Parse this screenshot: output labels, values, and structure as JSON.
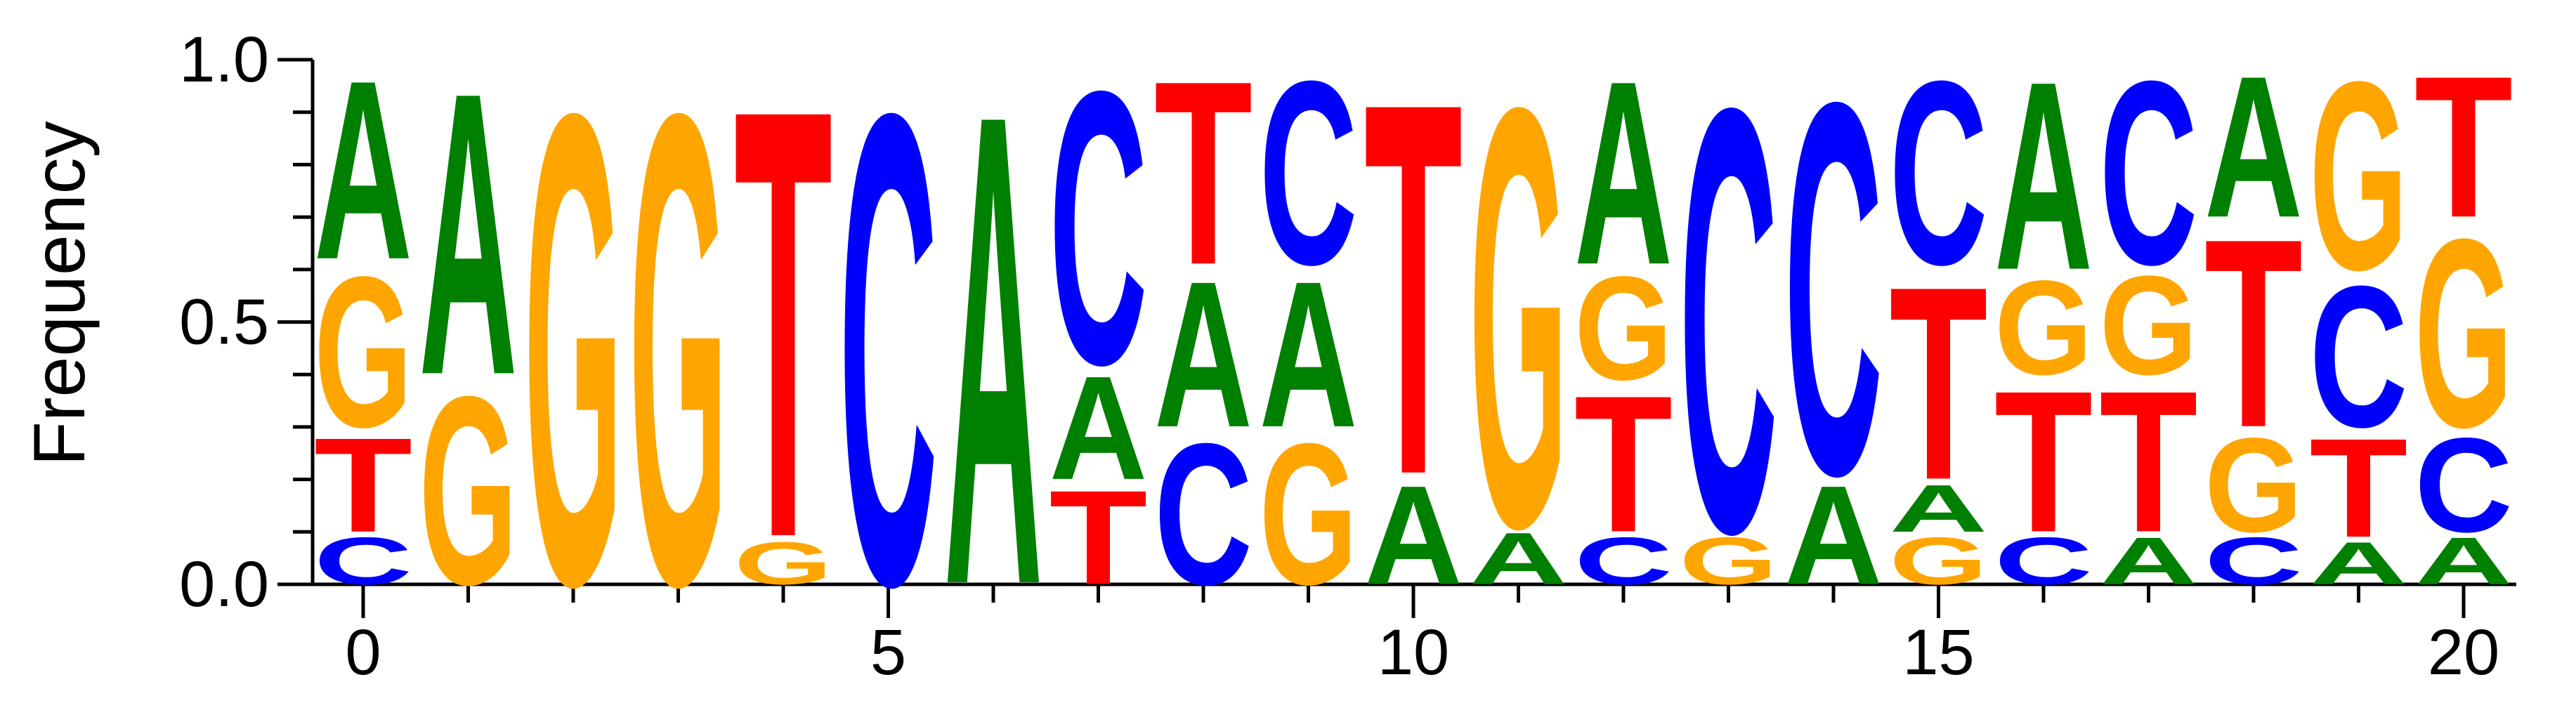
{
  "chart_data": {
    "type": "sequence-logo",
    "title": "",
    "xlabel": "",
    "ylabel": "Frequency",
    "ylim": [
      0,
      1
    ],
    "xlim": [
      -0.5,
      20.5
    ],
    "x_ticks": [
      0,
      5,
      10,
      15,
      20
    ],
    "x_tick_labels": [
      "0",
      "5",
      "10",
      "15",
      "20"
    ],
    "y_ticks": [
      0,
      0.5,
      1
    ],
    "y_tick_labels": [
      "0.0",
      "0.5",
      "1.0"
    ],
    "grid": false,
    "legend": "none",
    "colors": {
      "A": "#008000",
      "C": "#0000ff",
      "G": "#ffa500",
      "T": "#ff0000"
    },
    "positions": [
      {
        "x": 0,
        "stack": [
          [
            "C",
            0.1
          ],
          [
            "T",
            0.2
          ],
          [
            "G",
            0.32
          ],
          [
            "A",
            0.38
          ]
        ]
      },
      {
        "x": 1,
        "stack": [
          [
            "G",
            0.4
          ],
          [
            "A",
            0.6
          ]
        ]
      },
      {
        "x": 2,
        "stack": [
          [
            "G",
            1.0
          ]
        ]
      },
      {
        "x": 3,
        "stack": [
          [
            "G",
            1.0
          ]
        ]
      },
      {
        "x": 4,
        "stack": [
          [
            "G",
            0.09
          ],
          [
            "T",
            0.91
          ]
        ]
      },
      {
        "x": 5,
        "stack": [
          [
            "C",
            1.0
          ]
        ]
      },
      {
        "x": 6,
        "stack": [
          [
            "A",
            1.0
          ]
        ]
      },
      {
        "x": 7,
        "stack": [
          [
            "T",
            0.2
          ],
          [
            "A",
            0.22
          ],
          [
            "C",
            0.58
          ]
        ]
      },
      {
        "x": 8,
        "stack": [
          [
            "C",
            0.3
          ],
          [
            "A",
            0.31
          ],
          [
            "T",
            0.39
          ]
        ]
      },
      {
        "x": 9,
        "stack": [
          [
            "G",
            0.3
          ],
          [
            "A",
            0.31
          ],
          [
            "C",
            0.39
          ]
        ]
      },
      {
        "x": 10,
        "stack": [
          [
            "A",
            0.21
          ],
          [
            "T",
            0.79
          ]
        ]
      },
      {
        "x": 11,
        "stack": [
          [
            "A",
            0.11
          ],
          [
            "G",
            0.89
          ]
        ]
      },
      {
        "x": 12,
        "stack": [
          [
            "C",
            0.1
          ],
          [
            "T",
            0.29
          ],
          [
            "G",
            0.22
          ],
          [
            "A",
            0.39
          ]
        ]
      },
      {
        "x": 13,
        "stack": [
          [
            "G",
            0.1
          ],
          [
            "C",
            0.9
          ]
        ]
      },
      {
        "x": 14,
        "stack": [
          [
            "A",
            0.21
          ],
          [
            "C",
            0.79
          ]
        ]
      },
      {
        "x": 15,
        "stack": [
          [
            "G",
            0.1
          ],
          [
            "A",
            0.1
          ],
          [
            "T",
            0.41
          ],
          [
            "C",
            0.39
          ]
        ]
      },
      {
        "x": 16,
        "stack": [
          [
            "C",
            0.1
          ],
          [
            "T",
            0.3
          ],
          [
            "G",
            0.2
          ],
          [
            "A",
            0.4
          ]
        ]
      },
      {
        "x": 17,
        "stack": [
          [
            "A",
            0.1
          ],
          [
            "T",
            0.3
          ],
          [
            "G",
            0.21
          ],
          [
            "C",
            0.39
          ]
        ]
      },
      {
        "x": 18,
        "stack": [
          [
            "C",
            0.1
          ],
          [
            "G",
            0.2
          ],
          [
            "T",
            0.4
          ],
          [
            "A",
            0.3
          ]
        ]
      },
      {
        "x": 19,
        "stack": [
          [
            "A",
            0.09
          ],
          [
            "T",
            0.21
          ],
          [
            "C",
            0.3
          ],
          [
            "G",
            0.4
          ]
        ]
      },
      {
        "x": 20,
        "stack": [
          [
            "A",
            0.1
          ],
          [
            "C",
            0.2
          ],
          [
            "G",
            0.4
          ],
          [
            "T",
            0.3
          ]
        ]
      }
    ]
  }
}
